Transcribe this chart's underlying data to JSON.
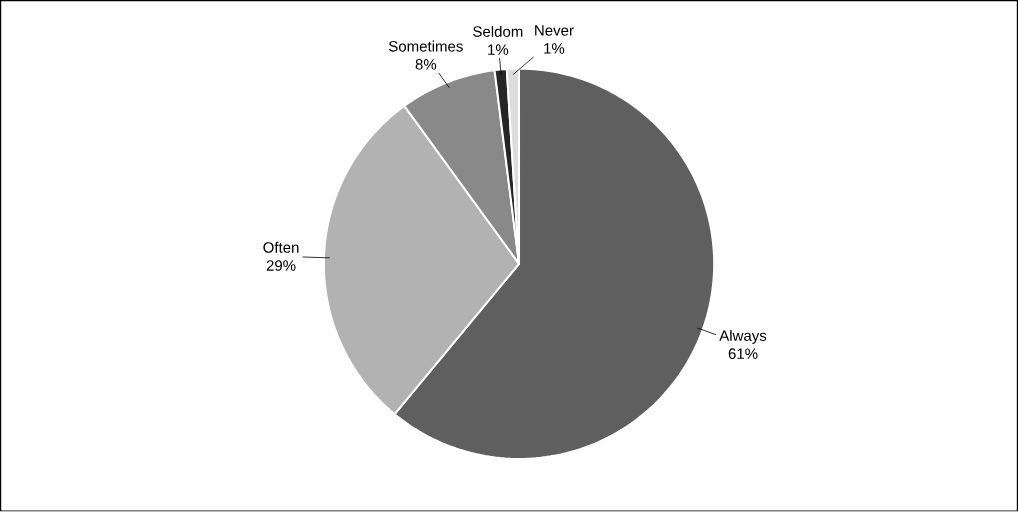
{
  "chart_data": {
    "type": "pie",
    "categories": [
      "Always",
      "Often",
      "Sometimes",
      "Seldom",
      "Never"
    ],
    "values": [
      61,
      29,
      8,
      1,
      1
    ],
    "value_labels": [
      "61%",
      "29%",
      "8%",
      "1%",
      "1%"
    ],
    "colors": [
      "#5f5f5f",
      "#b2b2b2",
      "#898989",
      "#262626",
      "#dcdcdc"
    ]
  }
}
